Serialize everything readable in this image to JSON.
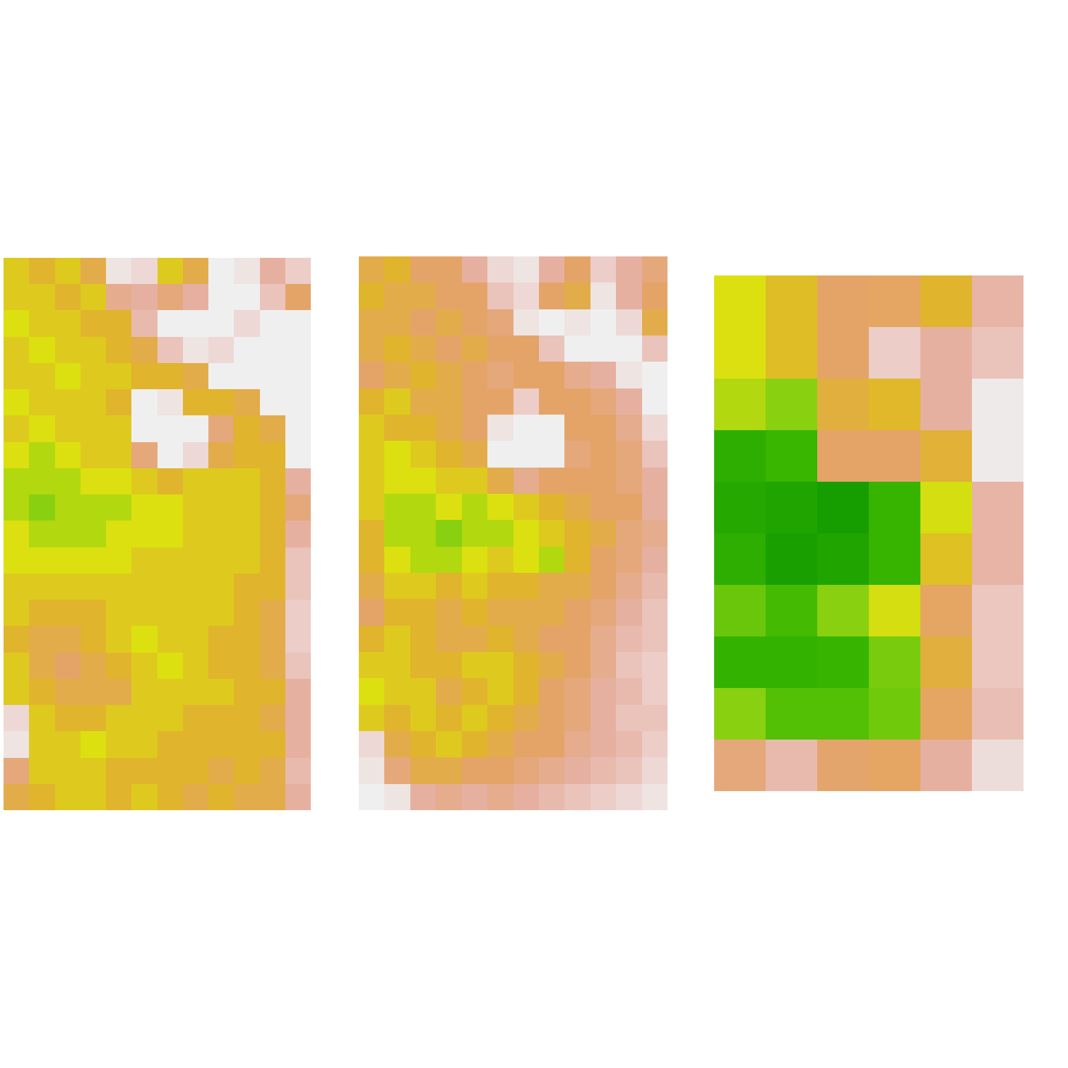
{
  "chart_data": [
    {
      "type": "heatmap",
      "zlim": [
        0,
        1
      ],
      "tick_labels": false,
      "cells": [
        [
          0.6,
          0.55,
          0.6,
          0.5,
          0.05,
          0.1,
          0.6,
          0.5,
          0.0,
          0.05,
          0.3,
          0.15
        ],
        [
          0.6,
          0.6,
          0.55,
          0.6,
          0.35,
          0.3,
          0.4,
          0.3,
          0.0,
          0.0,
          0.2,
          0.45
        ],
        [
          0.65,
          0.6,
          0.6,
          0.55,
          0.55,
          0.25,
          0.0,
          0.0,
          0.0,
          0.1,
          0.0,
          0.0
        ],
        [
          0.6,
          0.65,
          0.6,
          0.6,
          0.55,
          0.5,
          0.2,
          0.05,
          0.1,
          0.0,
          0.0,
          0.0
        ],
        [
          0.6,
          0.6,
          0.65,
          0.6,
          0.6,
          0.55,
          0.55,
          0.5,
          0.0,
          0.0,
          0.0,
          0.0
        ],
        [
          0.65,
          0.6,
          0.6,
          0.6,
          0.55,
          0.0,
          0.05,
          0.55,
          0.55,
          0.5,
          0.0,
          0.0
        ],
        [
          0.6,
          0.65,
          0.6,
          0.6,
          0.6,
          0.0,
          0.0,
          0.0,
          0.4,
          0.55,
          0.5,
          0.0
        ],
        [
          0.65,
          0.7,
          0.65,
          0.6,
          0.6,
          0.4,
          0.0,
          0.1,
          0.5,
          0.55,
          0.55,
          0.0
        ],
        [
          0.7,
          0.7,
          0.7,
          0.65,
          0.65,
          0.6,
          0.55,
          0.6,
          0.6,
          0.6,
          0.55,
          0.3
        ],
        [
          0.7,
          0.75,
          0.7,
          0.7,
          0.7,
          0.65,
          0.65,
          0.6,
          0.6,
          0.6,
          0.55,
          0.4
        ],
        [
          0.65,
          0.7,
          0.7,
          0.7,
          0.65,
          0.65,
          0.65,
          0.6,
          0.6,
          0.6,
          0.55,
          0.3
        ],
        [
          0.65,
          0.65,
          0.65,
          0.65,
          0.65,
          0.6,
          0.6,
          0.6,
          0.6,
          0.6,
          0.55,
          0.2
        ],
        [
          0.6,
          0.6,
          0.6,
          0.6,
          0.6,
          0.6,
          0.6,
          0.6,
          0.6,
          0.55,
          0.55,
          0.2
        ],
        [
          0.6,
          0.55,
          0.55,
          0.55,
          0.6,
          0.6,
          0.6,
          0.6,
          0.6,
          0.55,
          0.5,
          0.15
        ],
        [
          0.55,
          0.5,
          0.5,
          0.55,
          0.6,
          0.65,
          0.6,
          0.6,
          0.55,
          0.55,
          0.5,
          0.15
        ],
        [
          0.6,
          0.5,
          0.45,
          0.5,
          0.55,
          0.6,
          0.65,
          0.6,
          0.55,
          0.55,
          0.5,
          0.2
        ],
        [
          0.6,
          0.55,
          0.5,
          0.5,
          0.5,
          0.6,
          0.6,
          0.6,
          0.6,
          0.55,
          0.55,
          0.3
        ],
        [
          0.1,
          0.6,
          0.55,
          0.55,
          0.6,
          0.6,
          0.6,
          0.55,
          0.55,
          0.55,
          0.5,
          0.3
        ],
        [
          0.05,
          0.6,
          0.6,
          0.65,
          0.6,
          0.6,
          0.55,
          0.55,
          0.55,
          0.55,
          0.55,
          0.3
        ],
        [
          0.4,
          0.6,
          0.6,
          0.6,
          0.55,
          0.55,
          0.55,
          0.55,
          0.5,
          0.55,
          0.5,
          0.25
        ],
        [
          0.5,
          0.55,
          0.6,
          0.6,
          0.55,
          0.6,
          0.55,
          0.5,
          0.55,
          0.5,
          0.5,
          0.3
        ]
      ]
    },
    {
      "type": "heatmap",
      "zlim": [
        0,
        1
      ],
      "tick_labels": false,
      "cells": [
        [
          0.5,
          0.55,
          0.45,
          0.45,
          0.3,
          0.1,
          0.05,
          0.3,
          0.45,
          0.15,
          0.3,
          0.4
        ],
        [
          0.55,
          0.5,
          0.5,
          0.45,
          0.45,
          0.2,
          0.1,
          0.45,
          0.5,
          0.05,
          0.3,
          0.45
        ],
        [
          0.5,
          0.5,
          0.45,
          0.5,
          0.45,
          0.4,
          0.05,
          0.0,
          0.05,
          0.0,
          0.1,
          0.5
        ],
        [
          0.5,
          0.55,
          0.5,
          0.45,
          0.5,
          0.45,
          0.45,
          0.2,
          0.0,
          0.0,
          0.0,
          0.2
        ],
        [
          0.45,
          0.5,
          0.55,
          0.5,
          0.45,
          0.4,
          0.45,
          0.45,
          0.35,
          0.3,
          0.05,
          0.0
        ],
        [
          0.55,
          0.6,
          0.5,
          0.5,
          0.45,
          0.45,
          0.15,
          0.45,
          0.45,
          0.4,
          0.3,
          0.0
        ],
        [
          0.6,
          0.55,
          0.55,
          0.5,
          0.45,
          0.05,
          0.0,
          0.0,
          0.45,
          0.45,
          0.35,
          0.1
        ],
        [
          0.6,
          0.65,
          0.6,
          0.55,
          0.5,
          0.0,
          0.0,
          0.0,
          0.4,
          0.45,
          0.4,
          0.2
        ],
        [
          0.6,
          0.65,
          0.65,
          0.6,
          0.6,
          0.5,
          0.35,
          0.45,
          0.45,
          0.45,
          0.4,
          0.3
        ],
        [
          0.6,
          0.7,
          0.7,
          0.65,
          0.7,
          0.65,
          0.6,
          0.55,
          0.5,
          0.45,
          0.45,
          0.3
        ],
        [
          0.55,
          0.7,
          0.7,
          0.75,
          0.7,
          0.7,
          0.65,
          0.6,
          0.55,
          0.5,
          0.4,
          0.35
        ],
        [
          0.55,
          0.65,
          0.7,
          0.7,
          0.65,
          0.6,
          0.65,
          0.7,
          0.55,
          0.45,
          0.4,
          0.3
        ],
        [
          0.5,
          0.6,
          0.6,
          0.55,
          0.6,
          0.55,
          0.55,
          0.5,
          0.5,
          0.45,
          0.35,
          0.25
        ],
        [
          0.45,
          0.55,
          0.55,
          0.5,
          0.55,
          0.5,
          0.5,
          0.5,
          0.45,
          0.4,
          0.3,
          0.2
        ],
        [
          0.55,
          0.6,
          0.55,
          0.5,
          0.5,
          0.55,
          0.5,
          0.45,
          0.45,
          0.35,
          0.25,
          0.2
        ],
        [
          0.6,
          0.6,
          0.55,
          0.55,
          0.6,
          0.6,
          0.55,
          0.5,
          0.45,
          0.35,
          0.2,
          0.15
        ],
        [
          0.65,
          0.6,
          0.6,
          0.5,
          0.55,
          0.6,
          0.55,
          0.45,
          0.4,
          0.3,
          0.25,
          0.15
        ],
        [
          0.6,
          0.55,
          0.6,
          0.55,
          0.6,
          0.55,
          0.5,
          0.45,
          0.4,
          0.3,
          0.2,
          0.2
        ],
        [
          0.1,
          0.5,
          0.55,
          0.6,
          0.55,
          0.5,
          0.45,
          0.45,
          0.35,
          0.3,
          0.25,
          0.15
        ],
        [
          0.05,
          0.4,
          0.5,
          0.5,
          0.45,
          0.45,
          0.4,
          0.35,
          0.3,
          0.25,
          0.2,
          0.1
        ],
        [
          0.0,
          0.05,
          0.3,
          0.35,
          0.3,
          0.35,
          0.3,
          0.25,
          0.2,
          0.15,
          0.1,
          0.05
        ]
      ]
    },
    {
      "type": "heatmap",
      "zlim": [
        0,
        1
      ],
      "tick_labels": false,
      "cells": [
        [
          0.65,
          0.57,
          0.45,
          0.46,
          0.55,
          0.28
        ],
        [
          0.65,
          0.57,
          0.45,
          0.15,
          0.3,
          0.2
        ],
        [
          0.7,
          0.75,
          0.52,
          0.56,
          0.3,
          0.02
        ],
        [
          0.9,
          0.86,
          0.45,
          0.45,
          0.53,
          0.02
        ],
        [
          0.93,
          0.95,
          0.98,
          0.87,
          0.66,
          0.28
        ],
        [
          0.9,
          0.97,
          0.95,
          0.87,
          0.58,
          0.28
        ],
        [
          0.79,
          0.84,
          0.75,
          0.66,
          0.46,
          0.18
        ],
        [
          0.88,
          0.88,
          0.87,
          0.77,
          0.52,
          0.18
        ],
        [
          0.75,
          0.82,
          0.82,
          0.78,
          0.46,
          0.22
        ],
        [
          0.4,
          0.25,
          0.44,
          0.46,
          0.3,
          0.08
        ]
      ]
    }
  ]
}
